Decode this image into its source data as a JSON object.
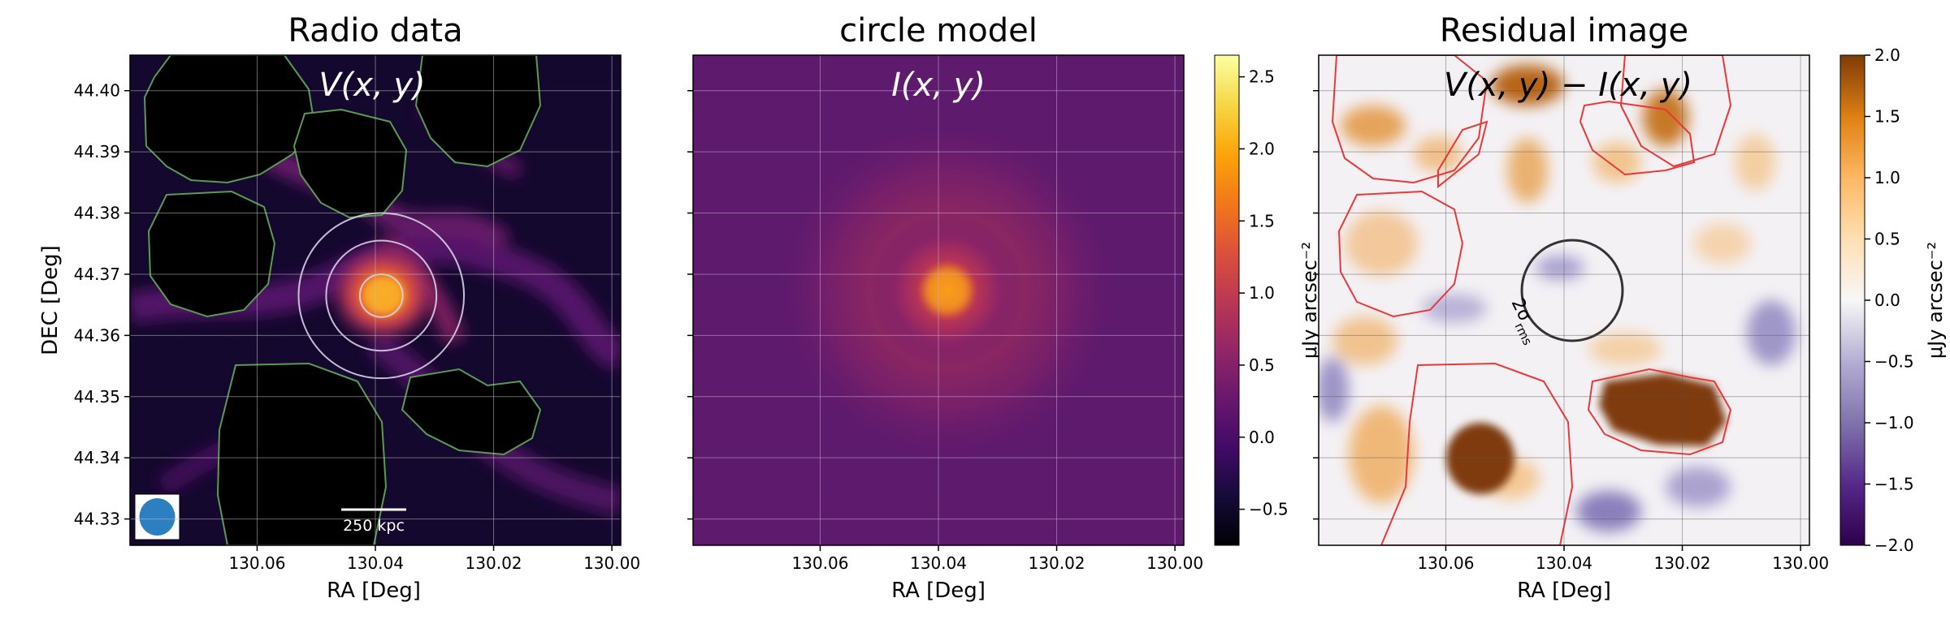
{
  "chart_data": [
    {
      "type": "heatmap",
      "title": "Radio data",
      "annotation": "V(x, y)",
      "xlabel": "RA [Deg]",
      "ylabel": "DEC [Deg]",
      "xlim": [
        130.0815,
        129.9985
      ],
      "ylim": [
        44.3257,
        44.4058
      ],
      "x_ticks": [
        130.06,
        130.04,
        130.02,
        130.0
      ],
      "x_tick_labels": [
        "130.06",
        "130.04",
        "130.02",
        "130.00"
      ],
      "y_ticks": [
        44.33,
        44.34,
        44.35,
        44.36,
        44.37,
        44.38,
        44.39,
        44.4
      ],
      "y_tick_labels": [
        "44.33",
        "44.34",
        "44.35",
        "44.36",
        "44.37",
        "44.38",
        "44.39",
        "44.40"
      ],
      "colormap": "inferno",
      "grid": true,
      "source_center": {
        "ra": 130.039,
        "dec": 44.3665
      },
      "circle_radii_deg": [
        0.0035,
        0.009,
        0.0135
      ],
      "scale_bar_label": "250 kpc",
      "beam_marker": "blue-ellipse",
      "masked_regions_color": "#000000",
      "mask_contour_color": "#5a9a52"
    },
    {
      "type": "heatmap",
      "title": "circle model",
      "annotation": "I(x, y)",
      "xlabel": "RA [Deg]",
      "ylabel": "",
      "xlim": [
        130.0815,
        129.9985
      ],
      "ylim": [
        44.3257,
        44.4058
      ],
      "x_ticks": [
        130.06,
        130.04,
        130.02,
        130.0
      ],
      "x_tick_labels": [
        "130.06",
        "130.04",
        "130.02",
        "130.00"
      ],
      "colormap": "inferno",
      "grid": true,
      "model_center": {
        "ra": 130.0385,
        "dec": 44.3665
      },
      "model_peak": 1.6,
      "background_level": 0.05,
      "colorbar": {
        "min": -0.75,
        "max": 2.65,
        "ticks": [
          -0.5,
          0.0,
          0.5,
          1.0,
          1.5,
          2.0,
          2.5
        ],
        "tick_labels": [
          "−0.5",
          "0.0",
          "0.5",
          "1.0",
          "1.5",
          "2.0",
          "2.5"
        ],
        "label": "μJy arcsec⁻²"
      }
    },
    {
      "type": "heatmap",
      "title": "Residual image",
      "annotation": "V(x, y) − I(x, y)",
      "xlabel": "RA [Deg]",
      "ylabel": "",
      "xlim": [
        130.0815,
        129.9985
      ],
      "ylim": [
        44.3257,
        44.4058
      ],
      "x_ticks": [
        130.06,
        130.04,
        130.02,
        130.0
      ],
      "x_tick_labels": [
        "130.06",
        "130.04",
        "130.02",
        "130.00"
      ],
      "colormap": "PuOr",
      "grid": true,
      "sigma_circle_label": "2σ",
      "sigma_circle_subscript": "rms",
      "mask_contour_color": "#e8393a",
      "colorbar": {
        "min": -2.0,
        "max": 2.0,
        "ticks": [
          -2.0,
          -1.5,
          -1.0,
          -0.5,
          0.0,
          0.5,
          1.0,
          1.5,
          2.0
        ],
        "tick_labels": [
          "−2.0",
          "−1.5",
          "−1.0",
          "−0.5",
          "0.0",
          "0.5",
          "1.0",
          "1.5",
          "2.0"
        ],
        "label": "μJy arcsec⁻²"
      }
    }
  ]
}
